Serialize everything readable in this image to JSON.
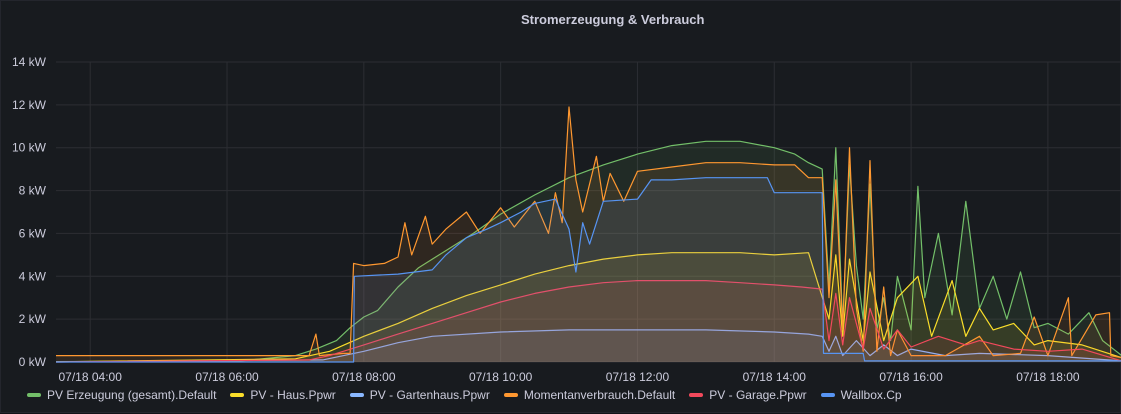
{
  "panel": {
    "title": "Stromerzeugung & Verbrauch"
  },
  "chart_data": {
    "type": "area",
    "title": "Stromerzeugung & Verbrauch",
    "ylim": [
      0,
      14
    ],
    "xlim": [
      "03:30",
      "19:05"
    ],
    "y_ticks": [
      "0 kW",
      "2 kW",
      "4 kW",
      "6 kW",
      "8 kW",
      "10 kW",
      "12 kW",
      "14 kW"
    ],
    "x_ticks": [
      "07/18 04:00",
      "07/18 06:00",
      "07/18 08:00",
      "07/18 10:00",
      "07/18 12:00",
      "07/18 14:00",
      "07/18 16:00",
      "07/18 18:00",
      "07/18"
    ],
    "grid": true,
    "legend_position": "bottom-left",
    "series": [
      {
        "name": "PV Erzeugung (gesamt).Default",
        "color": "#73bf69",
        "points": [
          [
            3.5,
            0.02
          ],
          [
            6.2,
            0.05
          ],
          [
            7.0,
            0.3
          ],
          [
            7.3,
            0.6
          ],
          [
            7.6,
            1.0
          ],
          [
            7.8,
            1.6
          ],
          [
            8.0,
            2.1
          ],
          [
            8.2,
            2.4
          ],
          [
            8.5,
            3.5
          ],
          [
            8.8,
            4.4
          ],
          [
            9.2,
            5.2
          ],
          [
            9.6,
            6.0
          ],
          [
            10.0,
            6.9
          ],
          [
            10.5,
            7.8
          ],
          [
            11.0,
            8.6
          ],
          [
            11.5,
            9.2
          ],
          [
            12.0,
            9.7
          ],
          [
            12.5,
            10.1
          ],
          [
            13.0,
            10.3
          ],
          [
            13.5,
            10.3
          ],
          [
            14.0,
            10.0
          ],
          [
            14.3,
            9.7
          ],
          [
            14.5,
            9.3
          ],
          [
            14.7,
            9.0
          ],
          [
            14.8,
            3.5
          ],
          [
            14.9,
            10.0
          ],
          [
            15.0,
            1.8
          ],
          [
            15.1,
            9.2
          ],
          [
            15.2,
            4.5
          ],
          [
            15.3,
            2.0
          ],
          [
            15.4,
            8.3
          ],
          [
            15.5,
            1.5
          ],
          [
            15.6,
            3.0
          ],
          [
            15.7,
            1.0
          ],
          [
            15.8,
            4.0
          ],
          [
            16.0,
            1.5
          ],
          [
            16.1,
            8.2
          ],
          [
            16.2,
            3.0
          ],
          [
            16.4,
            6.0
          ],
          [
            16.6,
            2.2
          ],
          [
            16.8,
            7.5
          ],
          [
            17.0,
            2.5
          ],
          [
            17.2,
            4.0
          ],
          [
            17.4,
            2.0
          ],
          [
            17.6,
            4.2
          ],
          [
            17.8,
            1.6
          ],
          [
            18.0,
            1.8
          ],
          [
            18.3,
            1.3
          ],
          [
            18.6,
            2.3
          ],
          [
            18.8,
            1.0
          ],
          [
            19.0,
            0.5
          ],
          [
            19.08,
            0.3
          ]
        ]
      },
      {
        "name": "PV - Haus.Ppwr",
        "color": "#fade2a",
        "points": [
          [
            3.5,
            0.01
          ],
          [
            7.0,
            0.15
          ],
          [
            7.5,
            0.5
          ],
          [
            8.0,
            1.2
          ],
          [
            8.5,
            1.8
          ],
          [
            9.0,
            2.5
          ],
          [
            9.5,
            3.1
          ],
          [
            10.0,
            3.6
          ],
          [
            10.5,
            4.1
          ],
          [
            11.0,
            4.5
          ],
          [
            11.5,
            4.8
          ],
          [
            12.0,
            5.0
          ],
          [
            12.5,
            5.1
          ],
          [
            13.0,
            5.1
          ],
          [
            13.5,
            5.1
          ],
          [
            14.0,
            5.0
          ],
          [
            14.5,
            5.1
          ],
          [
            14.8,
            2.0
          ],
          [
            14.9,
            5.0
          ],
          [
            15.0,
            1.2
          ],
          [
            15.1,
            4.8
          ],
          [
            15.3,
            1.0
          ],
          [
            15.4,
            4.2
          ],
          [
            15.6,
            1.0
          ],
          [
            15.8,
            3.0
          ],
          [
            16.1,
            4.0
          ],
          [
            16.3,
            1.2
          ],
          [
            16.6,
            3.8
          ],
          [
            16.8,
            1.2
          ],
          [
            17.0,
            2.5
          ],
          [
            17.2,
            1.5
          ],
          [
            17.5,
            1.8
          ],
          [
            17.8,
            0.8
          ],
          [
            18.0,
            1.0
          ],
          [
            18.5,
            0.8
          ],
          [
            19.08,
            0.2
          ]
        ]
      },
      {
        "name": "PV - Gartenhaus.Ppwr",
        "color": "#8ab8ff",
        "points": [
          [
            3.5,
            0.0
          ],
          [
            7.4,
            0.1
          ],
          [
            8.0,
            0.5
          ],
          [
            8.5,
            0.9
          ],
          [
            9.0,
            1.2
          ],
          [
            10.0,
            1.4
          ],
          [
            11.0,
            1.5
          ],
          [
            12.0,
            1.5
          ],
          [
            13.0,
            1.5
          ],
          [
            14.0,
            1.4
          ],
          [
            14.5,
            1.3
          ],
          [
            14.7,
            1.2
          ],
          [
            14.8,
            0.5
          ],
          [
            14.9,
            1.2
          ],
          [
            15.0,
            0.3
          ],
          [
            15.2,
            1.0
          ],
          [
            15.4,
            0.3
          ],
          [
            15.6,
            0.8
          ],
          [
            15.8,
            0.3
          ],
          [
            16.0,
            0.6
          ],
          [
            16.5,
            0.3
          ],
          [
            17.0,
            0.4
          ],
          [
            18.0,
            0.3
          ],
          [
            19.08,
            0.05
          ]
        ]
      },
      {
        "name": "Momentanverbrauch.Default",
        "color": "#ff9830",
        "points": [
          [
            3.5,
            0.3
          ],
          [
            7.2,
            0.3
          ],
          [
            7.3,
            1.3
          ],
          [
            7.35,
            0.3
          ],
          [
            7.7,
            0.4
          ],
          [
            7.8,
            0.4
          ],
          [
            7.85,
            4.6
          ],
          [
            8.0,
            4.5
          ],
          [
            8.3,
            4.6
          ],
          [
            8.5,
            4.9
          ],
          [
            8.6,
            6.5
          ],
          [
            8.7,
            5.0
          ],
          [
            8.9,
            6.8
          ],
          [
            9.0,
            5.5
          ],
          [
            9.2,
            6.2
          ],
          [
            9.5,
            7.0
          ],
          [
            9.7,
            6.0
          ],
          [
            10.0,
            7.2
          ],
          [
            10.2,
            6.3
          ],
          [
            10.5,
            7.5
          ],
          [
            10.7,
            6.0
          ],
          [
            10.8,
            7.9
          ],
          [
            10.9,
            6.5
          ],
          [
            11.0,
            11.9
          ],
          [
            11.1,
            8.5
          ],
          [
            11.2,
            7.0
          ],
          [
            11.4,
            9.6
          ],
          [
            11.5,
            7.5
          ],
          [
            11.6,
            8.8
          ],
          [
            11.8,
            7.5
          ],
          [
            12.0,
            8.9
          ],
          [
            12.5,
            9.1
          ],
          [
            13.0,
            9.3
          ],
          [
            13.5,
            9.3
          ],
          [
            14.0,
            9.2
          ],
          [
            14.3,
            9.2
          ],
          [
            14.5,
            8.6
          ],
          [
            14.7,
            8.6
          ],
          [
            14.8,
            3.0
          ],
          [
            14.9,
            8.5
          ],
          [
            15.0,
            1.5
          ],
          [
            15.1,
            10.0
          ],
          [
            15.2,
            2.5
          ],
          [
            15.3,
            0.5
          ],
          [
            15.4,
            9.4
          ],
          [
            15.5,
            0.5
          ],
          [
            15.6,
            3.5
          ],
          [
            15.7,
            0.3
          ],
          [
            15.8,
            1.5
          ],
          [
            16.0,
            0.3
          ],
          [
            16.5,
            0.3
          ],
          [
            17.0,
            1.2
          ],
          [
            17.2,
            0.3
          ],
          [
            17.6,
            0.4
          ],
          [
            17.8,
            2.1
          ],
          [
            18.0,
            0.3
          ],
          [
            18.3,
            3.0
          ],
          [
            18.35,
            0.3
          ],
          [
            18.7,
            2.2
          ],
          [
            18.9,
            2.3
          ],
          [
            18.92,
            0.3
          ],
          [
            19.08,
            0.2
          ]
        ]
      },
      {
        "name": "PV - Garage.Ppwr",
        "color": "#f2495c",
        "points": [
          [
            3.5,
            0.0
          ],
          [
            7.2,
            0.1
          ],
          [
            7.5,
            0.3
          ],
          [
            8.0,
            0.8
          ],
          [
            8.5,
            1.3
          ],
          [
            9.0,
            1.8
          ],
          [
            9.5,
            2.3
          ],
          [
            10.0,
            2.8
          ],
          [
            10.5,
            3.2
          ],
          [
            11.0,
            3.5
          ],
          [
            11.5,
            3.7
          ],
          [
            12.0,
            3.8
          ],
          [
            12.5,
            3.8
          ],
          [
            13.0,
            3.8
          ],
          [
            13.5,
            3.7
          ],
          [
            14.0,
            3.6
          ],
          [
            14.4,
            3.5
          ],
          [
            14.7,
            3.4
          ],
          [
            14.8,
            1.0
          ],
          [
            14.9,
            3.2
          ],
          [
            15.0,
            0.8
          ],
          [
            15.1,
            3.0
          ],
          [
            15.3,
            0.6
          ],
          [
            15.4,
            2.5
          ],
          [
            15.6,
            0.6
          ],
          [
            15.8,
            1.5
          ],
          [
            16.0,
            0.7
          ],
          [
            16.4,
            1.2
          ],
          [
            16.8,
            0.8
          ],
          [
            17.0,
            1.0
          ],
          [
            17.5,
            0.6
          ],
          [
            18.0,
            0.5
          ],
          [
            18.5,
            0.6
          ],
          [
            19.08,
            0.05
          ]
        ]
      },
      {
        "name": "Wallbox.Cp",
        "color": "#5794f2",
        "points": [
          [
            3.5,
            0.0
          ],
          [
            7.85,
            0.0
          ],
          [
            7.86,
            4.0
          ],
          [
            8.5,
            4.1
          ],
          [
            9.0,
            4.3
          ],
          [
            9.2,
            5.0
          ],
          [
            9.5,
            5.8
          ],
          [
            9.8,
            6.2
          ],
          [
            10.0,
            6.5
          ],
          [
            10.3,
            7.0
          ],
          [
            10.5,
            7.4
          ],
          [
            10.8,
            7.6
          ],
          [
            11.0,
            6.2
          ],
          [
            11.1,
            4.2
          ],
          [
            11.2,
            6.5
          ],
          [
            11.3,
            5.5
          ],
          [
            11.5,
            7.5
          ],
          [
            12.0,
            7.6
          ],
          [
            12.2,
            8.5
          ],
          [
            12.5,
            8.5
          ],
          [
            13.0,
            8.6
          ],
          [
            13.5,
            8.6
          ],
          [
            13.9,
            8.6
          ],
          [
            14.0,
            7.9
          ],
          [
            14.5,
            7.9
          ],
          [
            14.7,
            7.9
          ],
          [
            14.72,
            0.4
          ],
          [
            15.3,
            0.4
          ],
          [
            15.32,
            0.05
          ],
          [
            19.08,
            0.05
          ]
        ]
      }
    ]
  }
}
